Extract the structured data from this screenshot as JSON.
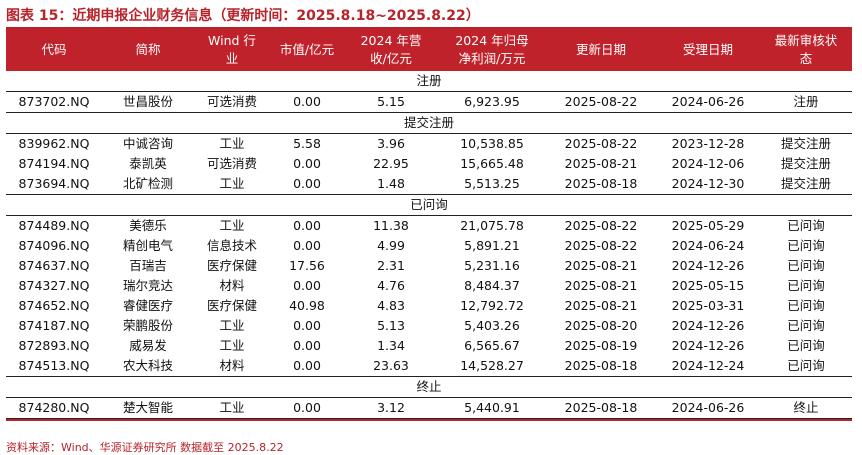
{
  "title": "图表 15：近期申报企业财务信息（更新时间：2025.8.18~2025.8.22）",
  "headers": {
    "code": "代码",
    "name": "简称",
    "industry_l1": "Wind 行",
    "industry_l2": "业",
    "mktcap": "市值/亿元",
    "revenue_l1": "2024 年营",
    "revenue_l2": "收/亿元",
    "profit_l1": "2024 年归母",
    "profit_l2": "净利润/万元",
    "update_date": "更新日期",
    "accept_date": "受理日期",
    "status_l1": "最新审核状",
    "status_l2": "态"
  },
  "groups": [
    {
      "label": "注册",
      "rows": [
        {
          "code": "873702.NQ",
          "name": "世昌股份",
          "industry": "可选消费",
          "mktcap": "0.00",
          "revenue": "5.15",
          "profit": "6,923.95",
          "update": "2025-08-22",
          "accept": "2024-06-26",
          "status": "注册"
        }
      ]
    },
    {
      "label": "提交注册",
      "rows": [
        {
          "code": "839962.NQ",
          "name": "中诚咨询",
          "industry": "工业",
          "mktcap": "5.58",
          "revenue": "3.96",
          "profit": "10,538.85",
          "update": "2025-08-22",
          "accept": "2023-12-28",
          "status": "提交注册"
        },
        {
          "code": "874194.NQ",
          "name": "泰凯英",
          "industry": "可选消费",
          "mktcap": "0.00",
          "revenue": "22.95",
          "profit": "15,665.48",
          "update": "2025-08-21",
          "accept": "2024-12-06",
          "status": "提交注册"
        },
        {
          "code": "873694.NQ",
          "name": "北矿检测",
          "industry": "工业",
          "mktcap": "0.00",
          "revenue": "1.48",
          "profit": "5,513.25",
          "update": "2025-08-18",
          "accept": "2024-12-30",
          "status": "提交注册"
        }
      ]
    },
    {
      "label": "已问询",
      "rows": [
        {
          "code": "874489.NQ",
          "name": "美德乐",
          "industry": "工业",
          "mktcap": "0.00",
          "revenue": "11.38",
          "profit": "21,075.78",
          "update": "2025-08-22",
          "accept": "2025-05-29",
          "status": "已问询"
        },
        {
          "code": "874096.NQ",
          "name": "精创电气",
          "industry": "信息技术",
          "mktcap": "0.00",
          "revenue": "4.99",
          "profit": "5,891.21",
          "update": "2025-08-22",
          "accept": "2024-06-24",
          "status": "已问询"
        },
        {
          "code": "874637.NQ",
          "name": "百瑞吉",
          "industry": "医疗保健",
          "mktcap": "17.56",
          "revenue": "2.31",
          "profit": "5,231.16",
          "update": "2025-08-21",
          "accept": "2024-12-26",
          "status": "已问询"
        },
        {
          "code": "874327.NQ",
          "name": "瑞尔竞达",
          "industry": "材料",
          "mktcap": "0.00",
          "revenue": "4.76",
          "profit": "8,484.37",
          "update": "2025-08-21",
          "accept": "2025-05-15",
          "status": "已问询"
        },
        {
          "code": "874652.NQ",
          "name": "睿健医疗",
          "industry": "医疗保健",
          "mktcap": "40.98",
          "revenue": "4.83",
          "profit": "12,792.72",
          "update": "2025-08-21",
          "accept": "2025-03-31",
          "status": "已问询"
        },
        {
          "code": "874187.NQ",
          "name": "荣鹏股份",
          "industry": "工业",
          "mktcap": "0.00",
          "revenue": "5.13",
          "profit": "5,403.26",
          "update": "2025-08-20",
          "accept": "2024-12-26",
          "status": "已问询"
        },
        {
          "code": "872893.NQ",
          "name": "威易发",
          "industry": "工业",
          "mktcap": "0.00",
          "revenue": "1.34",
          "profit": "6,565.67",
          "update": "2025-08-19",
          "accept": "2024-12-26",
          "status": "已问询"
        },
        {
          "code": "874513.NQ",
          "name": "农大科技",
          "industry": "材料",
          "mktcap": "0.00",
          "revenue": "23.63",
          "profit": "14,528.27",
          "update": "2025-08-18",
          "accept": "2024-12-24",
          "status": "已问询"
        }
      ]
    },
    {
      "label": "终止",
      "rows": [
        {
          "code": "874280.NQ",
          "name": "楚大智能",
          "industry": "工业",
          "mktcap": "0.00",
          "revenue": "3.12",
          "profit": "5,440.91",
          "update": "2025-08-18",
          "accept": "2024-06-26",
          "status": "终止"
        }
      ]
    }
  ],
  "source": "资料来源：Wind、华源证券研究所 数据截至 2025.8.22"
}
